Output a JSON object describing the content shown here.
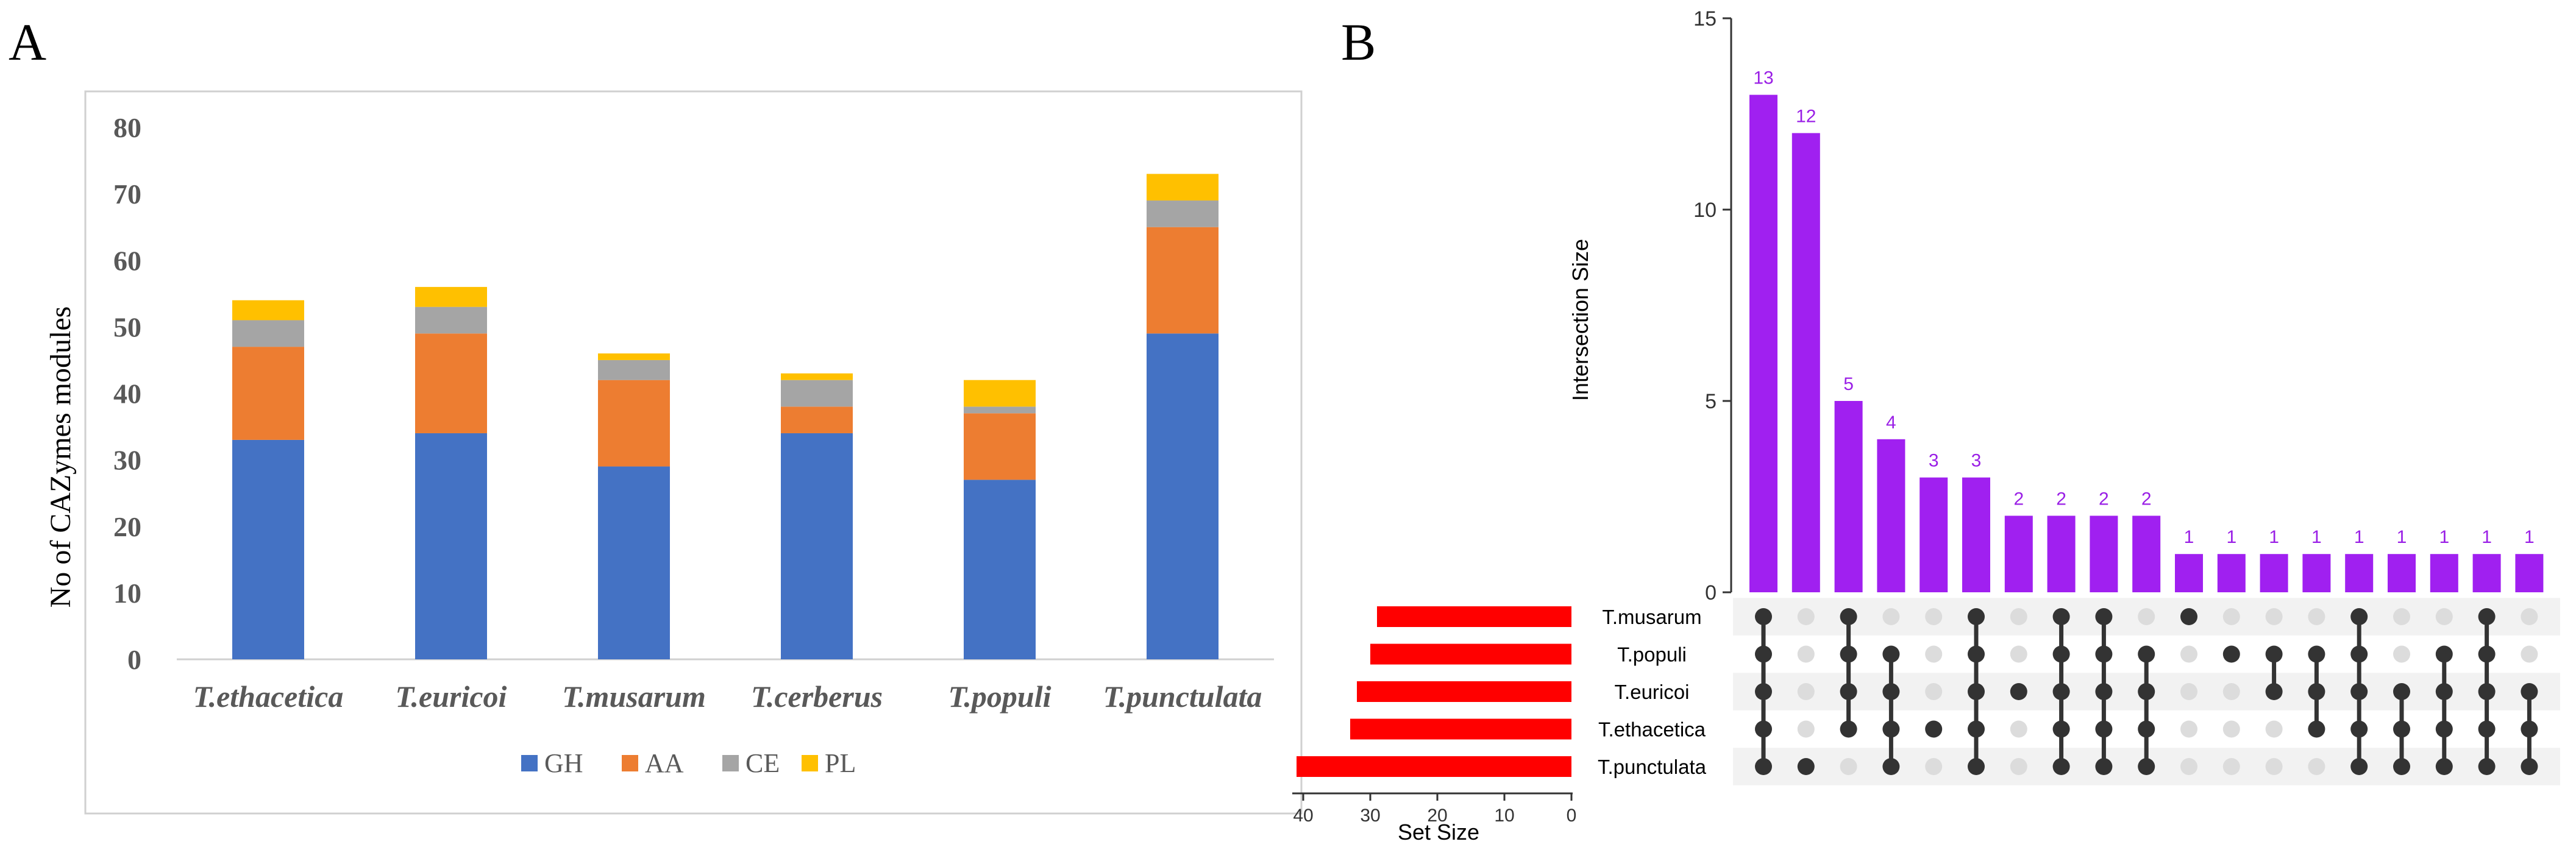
{
  "chart_data": [
    {
      "panel": "A",
      "type": "bar",
      "stacked": true,
      "categories": [
        "T.ethacetica",
        "T.euricoi",
        "T.musarum",
        "T.cerberus",
        "T.populi",
        "T.punctulata"
      ],
      "series": [
        {
          "name": "GH",
          "color": "#4472c4",
          "values": [
            33,
            34,
            29,
            34,
            27,
            49
          ]
        },
        {
          "name": "AA",
          "color": "#ed7d31",
          "values": [
            14,
            15,
            13,
            4,
            10,
            16
          ]
        },
        {
          "name": "CE",
          "color": "#a5a5a5",
          "values": [
            4,
            4,
            3,
            4,
            1,
            4
          ]
        },
        {
          "name": "PL",
          "color": "#ffc000",
          "values": [
            3,
            3,
            1,
            1,
            4,
            4
          ]
        }
      ],
      "title": "",
      "xlabel": "",
      "ylabel": "No of CAZymes modules",
      "ylim": [
        0,
        80
      ],
      "yticks": [
        "0",
        "10",
        "20",
        "30",
        "40",
        "50",
        "60",
        "70",
        "80"
      ],
      "legend": "bottom",
      "grid": false
    },
    {
      "panel": "B",
      "type": "upset",
      "sets": [
        "T.musarum",
        "T.populi",
        "T.euricoi",
        "T.ethacetica",
        "T.punctulata"
      ],
      "set_sizes": [
        29,
        30,
        32,
        33,
        41
      ],
      "set_size_label": "Set Size",
      "set_size_ticks": [
        "40",
        "30",
        "20",
        "10",
        "0"
      ],
      "set_size_xlim": [
        0,
        44
      ],
      "intersection_label": "Intersection Size",
      "intersection_ylim": [
        0,
        15
      ],
      "intersection_yticks": [
        "0",
        "5",
        "10",
        "15"
      ],
      "intersection_sizes": [
        13,
        12,
        5,
        4,
        3,
        3,
        2,
        2,
        2,
        2,
        1,
        1,
        1,
        1,
        1,
        1,
        1,
        1,
        1
      ],
      "intersection_labels": [
        "13",
        "12",
        "5",
        "4",
        "3",
        "3",
        "2",
        "2",
        "2",
        "2",
        "1",
        "1",
        "1",
        "1",
        "1",
        "1",
        "1",
        "1",
        "1"
      ],
      "memberships": [
        [
          0,
          1,
          2,
          3,
          4
        ],
        [
          4
        ],
        [
          0,
          1,
          2,
          3
        ],
        [
          1,
          2,
          3,
          4
        ],
        [
          3
        ],
        [
          0,
          1,
          2,
          3,
          4
        ],
        [
          2
        ],
        [
          0,
          1,
          2,
          3,
          4
        ],
        [
          0,
          1,
          2,
          3,
          4
        ],
        [
          1,
          2,
          3,
          4
        ],
        [
          0
        ],
        [
          1
        ],
        [
          1,
          2
        ],
        [
          1,
          2,
          3
        ],
        [
          0,
          1,
          2,
          3,
          4
        ],
        [
          2,
          3,
          4
        ],
        [
          1,
          2,
          3,
          4
        ],
        [
          0,
          1,
          2,
          3,
          4
        ],
        [
          2,
          3,
          4
        ]
      ],
      "bar_color": "#a020f0",
      "label_color": "#9a1fe6",
      "set_bar_color": "#ff0000",
      "dot_on_color": "#333333",
      "dot_off_color": "#dcdcdc"
    }
  ],
  "panel_labels": {
    "a": "A",
    "b": "B"
  }
}
